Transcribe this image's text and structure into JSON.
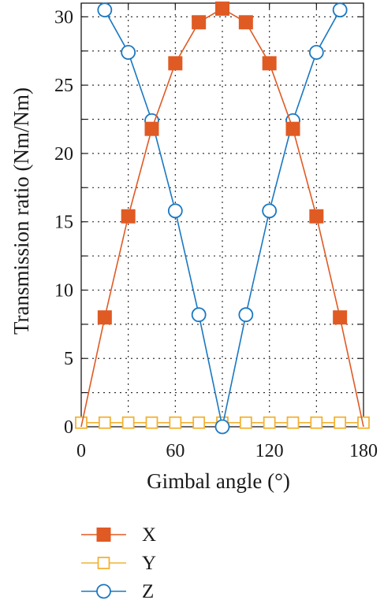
{
  "chart_data": {
    "type": "line",
    "title": "",
    "xlabel": "Gimbal angle (°)",
    "ylabel": "Transmission ratio (Nm/Nm)",
    "xlim": [
      0,
      180
    ],
    "ylim": [
      0,
      31
    ],
    "xticks": [
      0,
      60,
      120,
      180
    ],
    "yticks": [
      0,
      5,
      10,
      15,
      20,
      25,
      30
    ],
    "grid": true,
    "legend_position": "bottom",
    "series": [
      {
        "name": "X",
        "color": "#e05a24",
        "marker": "filled-square",
        "x": [
          0,
          15,
          30,
          45,
          60,
          75,
          90,
          105,
          120,
          135,
          150,
          165,
          180
        ],
        "values": [
          0,
          8.0,
          15.4,
          21.8,
          26.6,
          29.6,
          30.6,
          29.6,
          26.6,
          21.8,
          15.4,
          8.0,
          0
        ]
      },
      {
        "name": "Y",
        "color": "#f2b233",
        "marker": "hollow-square",
        "x": [
          0,
          15,
          30,
          45,
          60,
          75,
          90,
          105,
          120,
          135,
          150,
          165,
          180
        ],
        "values": [
          0.3,
          0.3,
          0.3,
          0.3,
          0.3,
          0.3,
          0.3,
          0.3,
          0.3,
          0.3,
          0.3,
          0.3,
          0.3
        ]
      },
      {
        "name": "Z",
        "color": "#1a78c2",
        "marker": "hollow-circle",
        "x": [
          15,
          30,
          45,
          60,
          75,
          90,
          105,
          120,
          135,
          150,
          165
        ],
        "values": [
          30.5,
          27.4,
          22.4,
          15.8,
          8.2,
          0,
          8.2,
          15.8,
          22.4,
          27.4,
          30.5
        ]
      }
    ]
  }
}
